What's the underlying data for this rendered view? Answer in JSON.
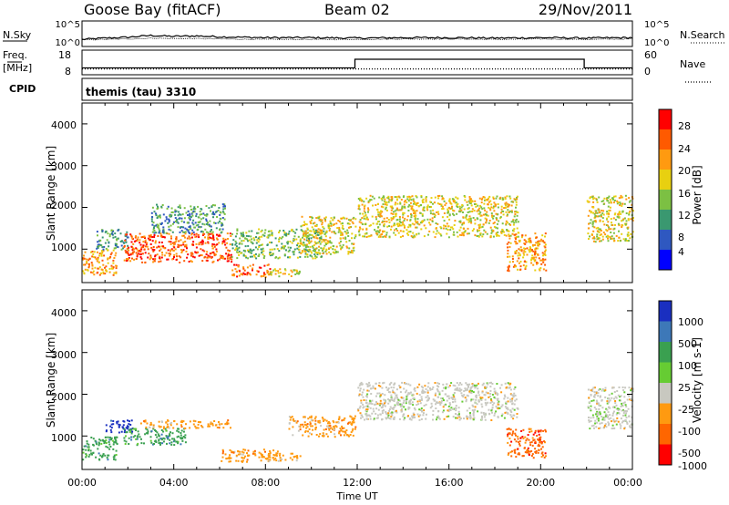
{
  "header": {
    "station": "Goose Bay (fitACF)",
    "beam": "Beam 02",
    "date": "29/Nov/2011"
  },
  "noise_panel": {
    "left_label": "N.Sky",
    "left_ticks": [
      "10^5",
      "10^0"
    ],
    "right_label": "N.Search",
    "right_ticks": [
      "10^5",
      "10^0"
    ]
  },
  "freq_panel": {
    "left_label_top": "Freq.",
    "left_label_bottom": "[MHz]",
    "left_ticks": [
      "18",
      "8"
    ],
    "right_label": "Nave",
    "right_ticks": [
      "60",
      "0"
    ]
  },
  "cpid_panel": {
    "label": "CPID",
    "program": "themis (tau) 3310"
  },
  "x_axis": {
    "label": "Time UT",
    "ticks": [
      "00:00",
      "04:00",
      "08:00",
      "12:00",
      "16:00",
      "20:00",
      "00:00"
    ]
  },
  "power_panel": {
    "ylabel": "Slant Range [km]",
    "yticks": [
      "1000",
      "2000",
      "3000",
      "4000"
    ],
    "colorbar_label": "Power [dB]",
    "colorbar_ticks": [
      "4",
      "8",
      "12",
      "16",
      "20",
      "24",
      "28"
    ],
    "colors": [
      "#0000ff",
      "#2f58c0",
      "#3a9870",
      "#7cc043",
      "#e8d010",
      "#ff9a10",
      "#ff5a00",
      "#ff0000"
    ]
  },
  "velocity_panel": {
    "ylabel": "Slant Range [km]",
    "yticks": [
      "1000",
      "2000",
      "3000",
      "4000"
    ],
    "colorbar_label": "Velocity [m s-1]",
    "colorbar_ticks": [
      "1000",
      "500",
      "100",
      "25",
      "-25",
      "-100",
      "-500",
      "-1000"
    ],
    "colors": [
      "#1a2fc0",
      "#3d78b8",
      "#3aa050",
      "#66cc33",
      "#c8c8c0",
      "#ff9a10",
      "#ff6600",
      "#ff0000"
    ]
  },
  "chart_data": [
    {
      "type": "line",
      "x": [
        0,
        1,
        2,
        3,
        4,
        5,
        6,
        8,
        10,
        12,
        14,
        16,
        18,
        20,
        22,
        24
      ],
      "series": [
        {
          "values": [
            1.2,
            1.5,
            1.7,
            2.1,
            1.9,
            2.0,
            1.8,
            1.6,
            1.6,
            1.5,
            1.6,
            1.6,
            1.5,
            1.6,
            1.5,
            1.6
          ]
        },
        {
          "values": [
            1.1,
            1.2,
            1.3,
            1.5,
            1.4,
            1.4,
            1.3,
            1.2,
            1.2,
            1.2,
            1.3,
            1.3,
            1.2,
            1.3,
            1.2,
            1.3
          ]
        }
      ],
      "xlim": [
        0,
        24
      ]
    },
    {
      "type": "line",
      "x": [
        0,
        11.9,
        11.9,
        21.9,
        21.9,
        24
      ],
      "series": [
        {
          "values": [
            10.5,
            10.5,
            14.8,
            14.8,
            10.5,
            10.5
          ]
        },
        {
          "values": [
            10,
            10,
            10,
            10,
            10,
            10
          ]
        }
      ],
      "xlim": [
        0,
        24
      ],
      "ylim": [
        8,
        18
      ]
    },
    {
      "type": "heatmap",
      "xlabel": "Time UT",
      "ylabel": "Slant Range [km]",
      "xlim": [
        0,
        24
      ],
      "ylim": [
        200,
        4500
      ],
      "colorbar_label": "Power [dB]",
      "colorbar_range": [
        0,
        32
      ],
      "regions": [
        {
          "t0": 0.0,
          "t1": 1.5,
          "r0": 400,
          "r1": 1000,
          "power": 22
        },
        {
          "t0": 0.6,
          "t1": 2.0,
          "r0": 1000,
          "r1": 1500,
          "power": 10
        },
        {
          "t0": 1.8,
          "t1": 6.5,
          "r0": 700,
          "r1": 1400,
          "power": 26
        },
        {
          "t0": 3.0,
          "t1": 6.2,
          "r0": 1400,
          "r1": 2100,
          "power": 9
        },
        {
          "t0": 6.5,
          "t1": 8.2,
          "r0": 350,
          "r1": 650,
          "power": 24
        },
        {
          "t0": 8.0,
          "t1": 9.5,
          "r0": 350,
          "r1": 550,
          "power": 16
        },
        {
          "t0": 6.5,
          "t1": 10.5,
          "r0": 800,
          "r1": 1500,
          "power": 12
        },
        {
          "t0": 9.5,
          "t1": 11.9,
          "r0": 900,
          "r1": 1800,
          "power": 18
        },
        {
          "t0": 12.0,
          "t1": 19.0,
          "r0": 1300,
          "r1": 2300,
          "power": 16
        },
        {
          "t0": 18.5,
          "t1": 20.2,
          "r0": 500,
          "r1": 1400,
          "power": 22
        },
        {
          "t0": 22.0,
          "t1": 24.0,
          "r0": 1200,
          "r1": 2300,
          "power": 16
        }
      ]
    },
    {
      "type": "heatmap",
      "xlabel": "Time UT",
      "ylabel": "Slant Range [km]",
      "xlim": [
        0,
        24
      ],
      "ylim": [
        200,
        4500
      ],
      "colorbar_label": "Velocity [m s-1]",
      "regions": [
        {
          "t0": 0.0,
          "t1": 1.5,
          "r0": 450,
          "r1": 1000,
          "velocity": 100
        },
        {
          "t0": 1.0,
          "t1": 2.2,
          "r0": 1100,
          "r1": 1400,
          "velocity": 1000
        },
        {
          "t0": 1.8,
          "t1": 4.5,
          "r0": 800,
          "r1": 1200,
          "velocity": 100
        },
        {
          "t0": 2.5,
          "t1": 6.5,
          "r0": 1200,
          "r1": 1400,
          "velocity": -100
        },
        {
          "t0": 6.0,
          "t1": 8.5,
          "r0": 400,
          "r1": 700,
          "velocity": -100
        },
        {
          "t0": 8.0,
          "t1": 9.5,
          "r0": 400,
          "r1": 600,
          "velocity": -100
        },
        {
          "t0": 9.0,
          "t1": 11.9,
          "r0": 1000,
          "r1": 1500,
          "velocity": -100
        },
        {
          "t0": 12.0,
          "t1": 19.0,
          "r0": 1400,
          "r1": 2300,
          "velocity": 0
        },
        {
          "t0": 18.5,
          "t1": 20.2,
          "r0": 500,
          "r1": 1200,
          "velocity": -500
        },
        {
          "t0": 22.0,
          "t1": 24.0,
          "r0": 1200,
          "r1": 2200,
          "velocity": 0
        }
      ]
    }
  ]
}
